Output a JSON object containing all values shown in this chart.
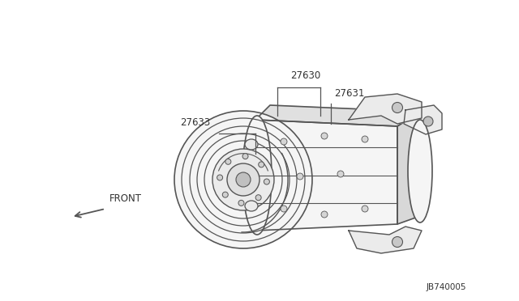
{
  "background_color": "#ffffff",
  "line_color": "#555555",
  "text_color": "#333333",
  "part_labels": [
    "27630",
    "27631",
    "27633"
  ],
  "front_label": "FRONT",
  "diagram_id": "JB740005",
  "figsize": [
    6.4,
    3.72
  ],
  "dpi": 100
}
